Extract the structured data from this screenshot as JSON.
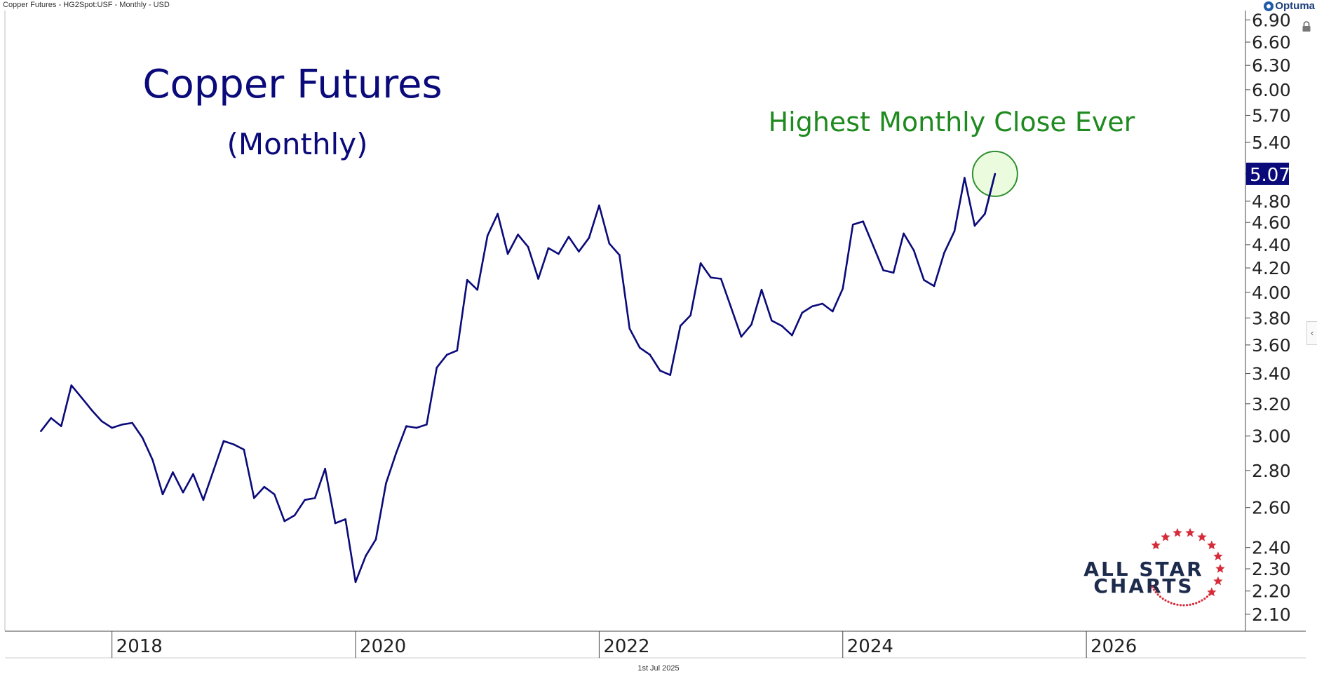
{
  "header": {
    "title_line": "Copper Futures - HG2Spot:USF - Monthly - USD",
    "brand": "Optuma"
  },
  "footer": {
    "date": "1st Jul 2025"
  },
  "annotations": {
    "title": "Copper Futures",
    "subtitle": "(Monthly)",
    "callout": "Highest Monthly Close Ever"
  },
  "watermark": {
    "line1": "ALL STAR",
    "line2": "CHARTS"
  },
  "colors": {
    "line": "#0a0a7a",
    "title": "#0a0a7a",
    "callout": "#1f8a1f",
    "highlight_fill": "#e8fbd8",
    "highlight_stroke": "#2f8f2f",
    "price_tag_bg": "#0a0a7a",
    "stars": "#d62c3a",
    "axis_text": "#222222"
  },
  "chart_data": {
    "type": "line",
    "title": "Copper Futures",
    "subtitle": "(Monthly)",
    "y_scale": "log",
    "ylim": [
      2.03,
      7.08
    ],
    "y_ticks": [
      6.9,
      6.6,
      6.3,
      6.0,
      5.7,
      5.4,
      5.07,
      4.8,
      4.6,
      4.4,
      4.2,
      4.0,
      3.8,
      3.6,
      3.4,
      3.2,
      3.0,
      2.8,
      2.6,
      2.4,
      2.3,
      2.2,
      2.1
    ],
    "y_tick_labels": [
      "6.90",
      "6.60",
      "6.30",
      "6.00",
      "5.70",
      "5.40",
      "",
      "4.80",
      "4.60",
      "4.40",
      "4.20",
      "4.00",
      "3.80",
      "3.60",
      "3.40",
      "3.20",
      "3.00",
      "2.80",
      "2.60",
      "2.40",
      "2.30",
      "2.20",
      "2.10"
    ],
    "x_ticks": [
      "2018",
      "2020",
      "2022",
      "2024",
      "2026"
    ],
    "last_price_label": "5.07",
    "series": [
      {
        "values": [
          {
            "x": "2017-06",
            "y": 3.03
          },
          {
            "x": "2017-07",
            "y": 3.11
          },
          {
            "x": "2017-08",
            "y": 3.06
          },
          {
            "x": "2017-09",
            "y": 3.32
          },
          {
            "x": "2017-10",
            "y": 3.24
          },
          {
            "x": "2017-11",
            "y": 3.16
          },
          {
            "x": "2017-12",
            "y": 3.09
          },
          {
            "x": "2018-01",
            "y": 3.05
          },
          {
            "x": "2018-02",
            "y": 3.07
          },
          {
            "x": "2018-03",
            "y": 3.08
          },
          {
            "x": "2018-04",
            "y": 2.99
          },
          {
            "x": "2018-05",
            "y": 2.86
          },
          {
            "x": "2018-06",
            "y": 2.67
          },
          {
            "x": "2018-07",
            "y": 2.79
          },
          {
            "x": "2018-08",
            "y": 2.68
          },
          {
            "x": "2018-09",
            "y": 2.78
          },
          {
            "x": "2018-10",
            "y": 2.64
          },
          {
            "x": "2018-11",
            "y": 2.8
          },
          {
            "x": "2018-12",
            "y": 2.97
          },
          {
            "x": "2019-01",
            "y": 2.95
          },
          {
            "x": "2019-02",
            "y": 2.92
          },
          {
            "x": "2019-03",
            "y": 2.65
          },
          {
            "x": "2019-04",
            "y": 2.71
          },
          {
            "x": "2019-05",
            "y": 2.67
          },
          {
            "x": "2019-06",
            "y": 2.53
          },
          {
            "x": "2019-07",
            "y": 2.56
          },
          {
            "x": "2019-08",
            "y": 2.64
          },
          {
            "x": "2019-09",
            "y": 2.65
          },
          {
            "x": "2019-10",
            "y": 2.81
          },
          {
            "x": "2019-11",
            "y": 2.52
          },
          {
            "x": "2019-12",
            "y": 2.54
          },
          {
            "x": "2020-01",
            "y": 2.24
          },
          {
            "x": "2020-02",
            "y": 2.36
          },
          {
            "x": "2020-03",
            "y": 2.44
          },
          {
            "x": "2020-04",
            "y": 2.73
          },
          {
            "x": "2020-05",
            "y": 2.9
          },
          {
            "x": "2020-06",
            "y": 3.06
          },
          {
            "x": "2020-07",
            "y": 3.05
          },
          {
            "x": "2020-08",
            "y": 3.07
          },
          {
            "x": "2020-09",
            "y": 3.44
          },
          {
            "x": "2020-10",
            "y": 3.53
          },
          {
            "x": "2020-11",
            "y": 3.56
          },
          {
            "x": "2020-12",
            "y": 4.1
          },
          {
            "x": "2021-01",
            "y": 4.02
          },
          {
            "x": "2021-02",
            "y": 4.48
          },
          {
            "x": "2021-03",
            "y": 4.68
          },
          {
            "x": "2021-04",
            "y": 4.32
          },
          {
            "x": "2021-05",
            "y": 4.49
          },
          {
            "x": "2021-06",
            "y": 4.38
          },
          {
            "x": "2021-07",
            "y": 4.11
          },
          {
            "x": "2021-08",
            "y": 4.37
          },
          {
            "x": "2021-09",
            "y": 4.32
          },
          {
            "x": "2021-10",
            "y": 4.47
          },
          {
            "x": "2021-11",
            "y": 4.34
          },
          {
            "x": "2021-12",
            "y": 4.46
          },
          {
            "x": "2022-01",
            "y": 4.76
          },
          {
            "x": "2022-02",
            "y": 4.41
          },
          {
            "x": "2022-03",
            "y": 4.31
          },
          {
            "x": "2022-04",
            "y": 3.72
          },
          {
            "x": "2022-05",
            "y": 3.58
          },
          {
            "x": "2022-06",
            "y": 3.53
          },
          {
            "x": "2022-07",
            "y": 3.42
          },
          {
            "x": "2022-08",
            "y": 3.39
          },
          {
            "x": "2022-09",
            "y": 3.74
          },
          {
            "x": "2022-10",
            "y": 3.82
          },
          {
            "x": "2022-11",
            "y": 4.24
          },
          {
            "x": "2022-12",
            "y": 4.12
          },
          {
            "x": "2023-01",
            "y": 4.11
          },
          {
            "x": "2023-02",
            "y": 3.88
          },
          {
            "x": "2023-03",
            "y": 3.66
          },
          {
            "x": "2023-04",
            "y": 3.75
          },
          {
            "x": "2023-05",
            "y": 4.02
          },
          {
            "x": "2023-06",
            "y": 3.78
          },
          {
            "x": "2023-07",
            "y": 3.74
          },
          {
            "x": "2023-08",
            "y": 3.67
          },
          {
            "x": "2023-09",
            "y": 3.84
          },
          {
            "x": "2023-10",
            "y": 3.89
          },
          {
            "x": "2023-11",
            "y": 3.91
          },
          {
            "x": "2023-12",
            "y": 3.85
          },
          {
            "x": "2024-01",
            "y": 4.03
          },
          {
            "x": "2024-02",
            "y": 4.58
          },
          {
            "x": "2024-03",
            "y": 4.61
          },
          {
            "x": "2024-04",
            "y": 4.39
          },
          {
            "x": "2024-05",
            "y": 4.18
          },
          {
            "x": "2024-06",
            "y": 4.16
          },
          {
            "x": "2024-07",
            "y": 4.5
          },
          {
            "x": "2024-08",
            "y": 4.35
          },
          {
            "x": "2024-09",
            "y": 4.1
          },
          {
            "x": "2024-10",
            "y": 4.05
          },
          {
            "x": "2024-11",
            "y": 4.33
          },
          {
            "x": "2024-12",
            "y": 4.52
          },
          {
            "x": "2025-01",
            "y": 5.03
          },
          {
            "x": "2025-02",
            "y": 4.57
          },
          {
            "x": "2025-03",
            "y": 4.68
          },
          {
            "x": "2025-04",
            "y": 5.07
          }
        ]
      }
    ],
    "grid": false,
    "legend": "none"
  }
}
